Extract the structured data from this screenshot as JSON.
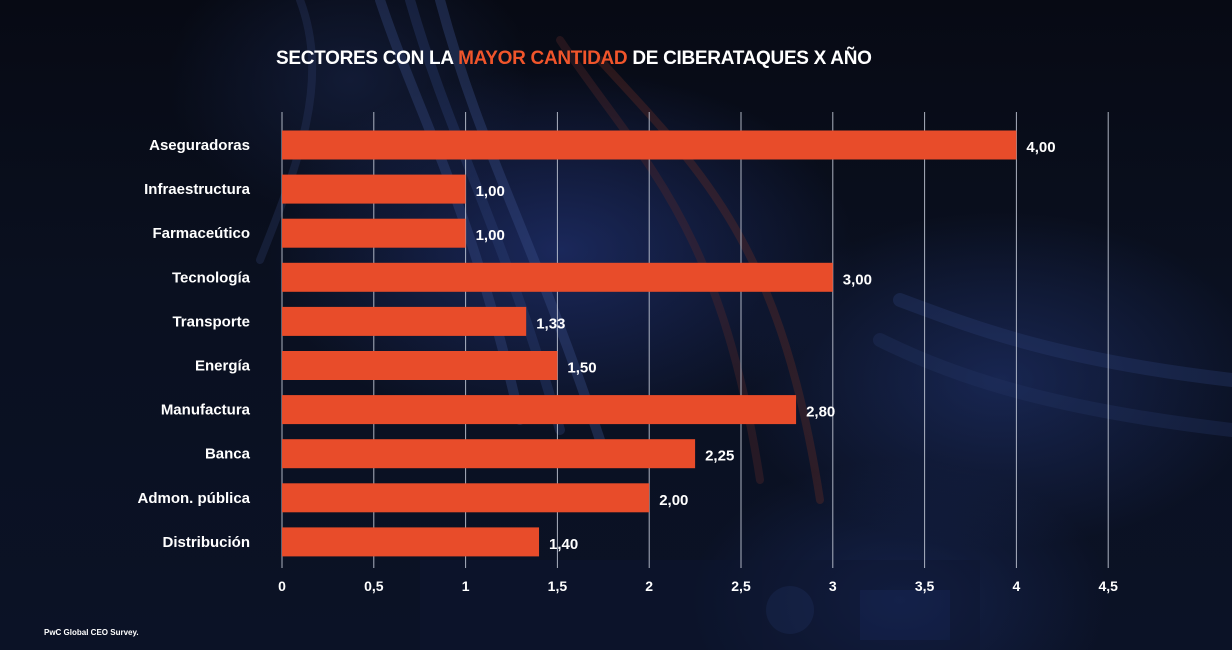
{
  "title": {
    "prefix": "SECTORES CON LA ",
    "highlight": "MAYOR CANTIDAD",
    "suffix": " DE CIBERATAQUES X AÑO"
  },
  "source": "PwC Global CEO Survey.",
  "colors": {
    "bar": "#e84c2a",
    "highlight": "#f0552b",
    "text": "#ffffff",
    "grid": "#c9cfdc"
  },
  "chart_data": {
    "type": "bar",
    "orientation": "horizontal",
    "title": "SECTORES CON LA MAYOR CANTIDAD DE CIBERATAQUES X AÑO",
    "categories": [
      "Aseguradoras",
      "Infraestructura",
      "Farmaceútico",
      "Tecnología",
      "Transporte",
      "Energía",
      "Manufactura",
      "Banca",
      "Admon. pública",
      "Distribución"
    ],
    "values": [
      4.0,
      1.0,
      1.0,
      3.0,
      1.33,
      1.5,
      2.8,
      2.25,
      2.0,
      1.4
    ],
    "value_labels": [
      "4,00",
      "1,00",
      "1,00",
      "3,00",
      "1,33",
      "1,50",
      "2,80",
      "2,25",
      "2,00",
      "1,40"
    ],
    "xlim": [
      0,
      4.5
    ],
    "xticks": [
      0,
      0.5,
      1,
      1.5,
      2,
      2.5,
      3,
      3.5,
      4,
      4.5
    ],
    "xtick_labels": [
      "0",
      "0,5",
      "1",
      "1,5",
      "2",
      "2,5",
      "3",
      "3,5",
      "4",
      "4,5"
    ],
    "xlabel": "",
    "ylabel": "",
    "grid": true,
    "legend": "none"
  }
}
